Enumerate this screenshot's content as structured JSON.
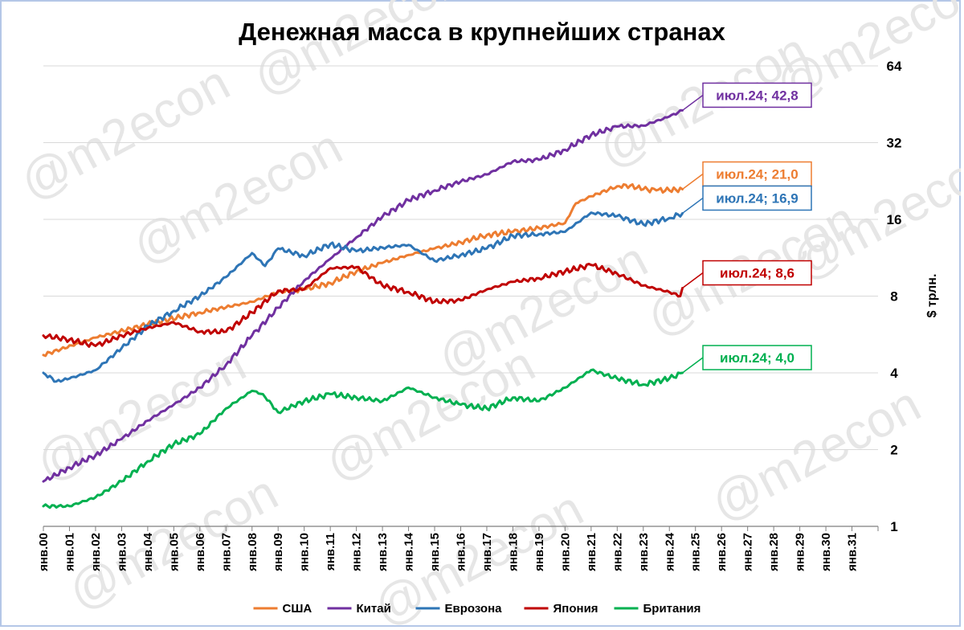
{
  "watermark": "@m2econ",
  "chart_data": {
    "type": "line",
    "title": "Денежная масса в крупнейших странах",
    "ylabel": "$ трлн.",
    "xlabel": "",
    "y_scale": "log2",
    "ylim": [
      1,
      64
    ],
    "y_ticks": [
      "1",
      "2",
      "4",
      "8",
      "16",
      "32",
      "64"
    ],
    "x_ticks": [
      "янв.00",
      "янв.01",
      "янв.02",
      "янв.03",
      "янв.04",
      "янв.05",
      "янв.06",
      "янв.07",
      "янв.08",
      "янв.09",
      "янв.10",
      "янв.11",
      "янв.12",
      "янв.13",
      "янв.14",
      "янв.15",
      "янв.16",
      "янв.17",
      "янв.18",
      "янв.19",
      "янв.20",
      "янв.21",
      "янв.22",
      "янв.23",
      "янв.24",
      "янв.25",
      "янв.26",
      "янв.27",
      "янв.28",
      "янв.29",
      "янв.30",
      "янв.31"
    ],
    "xlim": [
      "янв.00",
      "янв.32"
    ],
    "grid": "horizontal",
    "legend_position": "bottom",
    "series": [
      {
        "name": "США",
        "color": "#ed7d31",
        "x": [
          "янв.00",
          "янв.02",
          "янв.04",
          "янв.06",
          "янв.08",
          "янв.09",
          "янв.10",
          "янв.11",
          "янв.12",
          "янв.13",
          "янв.14",
          "янв.15",
          "янв.16",
          "янв.17",
          "янв.18",
          "янв.19",
          "янв.20",
          "июн.20",
          "янв.21",
          "янв.22",
          "июл.22",
          "янв.23",
          "июл.23",
          "янв.24",
          "июл.24"
        ],
        "values": [
          4.7,
          5.5,
          6.2,
          6.9,
          7.6,
          8.3,
          8.5,
          9.0,
          10.0,
          10.8,
          11.6,
          12.3,
          13.0,
          13.9,
          14.3,
          14.8,
          15.5,
          18.5,
          19.7,
          21.6,
          21.7,
          21.0,
          20.8,
          20.8,
          21.0
        ],
        "callout": "июл.24; 21,0"
      },
      {
        "name": "Китай",
        "color": "#7030a0",
        "x": [
          "янв.00",
          "янв.01",
          "янв.02",
          "янв.03",
          "янв.04",
          "янв.05",
          "янв.06",
          "янв.07",
          "янв.08",
          "янв.09",
          "янв.10",
          "янв.11",
          "янв.12",
          "янв.13",
          "янв.14",
          "янв.15",
          "янв.16",
          "янв.17",
          "янв.18",
          "янв.19",
          "янв.20",
          "янв.21",
          "янв.22",
          "янв.23",
          "янв.24",
          "июл.24"
        ],
        "values": [
          1.5,
          1.7,
          1.9,
          2.2,
          2.6,
          3.0,
          3.5,
          4.3,
          5.6,
          7.2,
          9.2,
          11.2,
          13.6,
          16.4,
          19.0,
          20.8,
          22.5,
          24.0,
          27.0,
          27.4,
          30.0,
          34.3,
          37.0,
          37.3,
          40.5,
          42.8
        ],
        "callout": "июл.24; 42,8"
      },
      {
        "name": "Еврозона",
        "color": "#2e75b6",
        "x": [
          "янв.00",
          "июл.00",
          "янв.01",
          "янв.02",
          "янв.03",
          "янв.04",
          "янв.05",
          "янв.06",
          "янв.07",
          "янв.08",
          "июл.08",
          "янв.09",
          "янв.10",
          "янв.11",
          "янв.12",
          "янв.13",
          "янв.14",
          "янв.15",
          "янв.16",
          "янв.17",
          "янв.18",
          "янв.19",
          "янв.20",
          "янв.21",
          "янв.22",
          "янв.23",
          "янв.24",
          "июл.24"
        ],
        "values": [
          4.0,
          3.7,
          3.8,
          4.1,
          5.0,
          6.1,
          7.0,
          8.0,
          9.5,
          11.8,
          10.5,
          12.3,
          11.5,
          12.8,
          12.0,
          12.4,
          12.7,
          11.0,
          11.6,
          12.3,
          13.8,
          14.0,
          14.3,
          17.0,
          16.5,
          15.3,
          16.2,
          16.9
        ],
        "callout": "июл.24; 16,9"
      },
      {
        "name": "Япония",
        "color": "#c00000",
        "x": [
          "янв.00",
          "янв.01",
          "янв.02",
          "янв.03",
          "янв.04",
          "янв.05",
          "янв.06",
          "янв.07",
          "янв.08",
          "янв.09",
          "янв.10",
          "янв.11",
          "янв.12",
          "янв.13",
          "янв.14",
          "янв.15",
          "янв.16",
          "янв.17",
          "янв.18",
          "янв.19",
          "янв.20",
          "янв.21",
          "янв.22",
          "янв.23",
          "янв.24",
          "июн.24",
          "июл.24"
        ],
        "values": [
          5.6,
          5.4,
          5.1,
          5.6,
          6.0,
          6.3,
          5.8,
          5.8,
          6.9,
          8.4,
          8.5,
          10.3,
          10.4,
          8.8,
          8.3,
          7.6,
          7.7,
          8.5,
          9.1,
          9.4,
          10.0,
          10.6,
          9.8,
          8.8,
          8.3,
          8.0,
          8.6
        ],
        "callout": "июл.24; 8,6"
      },
      {
        "name": "Британия",
        "color": "#00b050",
        "x": [
          "янв.00",
          "янв.01",
          "янв.02",
          "янв.03",
          "янв.04",
          "янв.05",
          "янв.06",
          "янв.07",
          "янв.08",
          "июн.08",
          "янв.09",
          "янв.10",
          "янв.11",
          "янв.12",
          "янв.13",
          "янв.14",
          "янв.15",
          "янв.16",
          "янв.17",
          "янв.18",
          "янв.19",
          "янв.20",
          "янв.21",
          "янв.22",
          "янв.23",
          "янв.24",
          "июл.24"
        ],
        "values": [
          1.2,
          1.2,
          1.3,
          1.5,
          1.8,
          2.1,
          2.3,
          2.9,
          3.4,
          3.3,
          2.8,
          3.1,
          3.3,
          3.2,
          3.1,
          3.5,
          3.2,
          3.0,
          2.9,
          3.2,
          3.1,
          3.5,
          4.1,
          3.8,
          3.6,
          3.8,
          4.0
        ],
        "callout": "июл.24; 4,0"
      }
    ]
  }
}
